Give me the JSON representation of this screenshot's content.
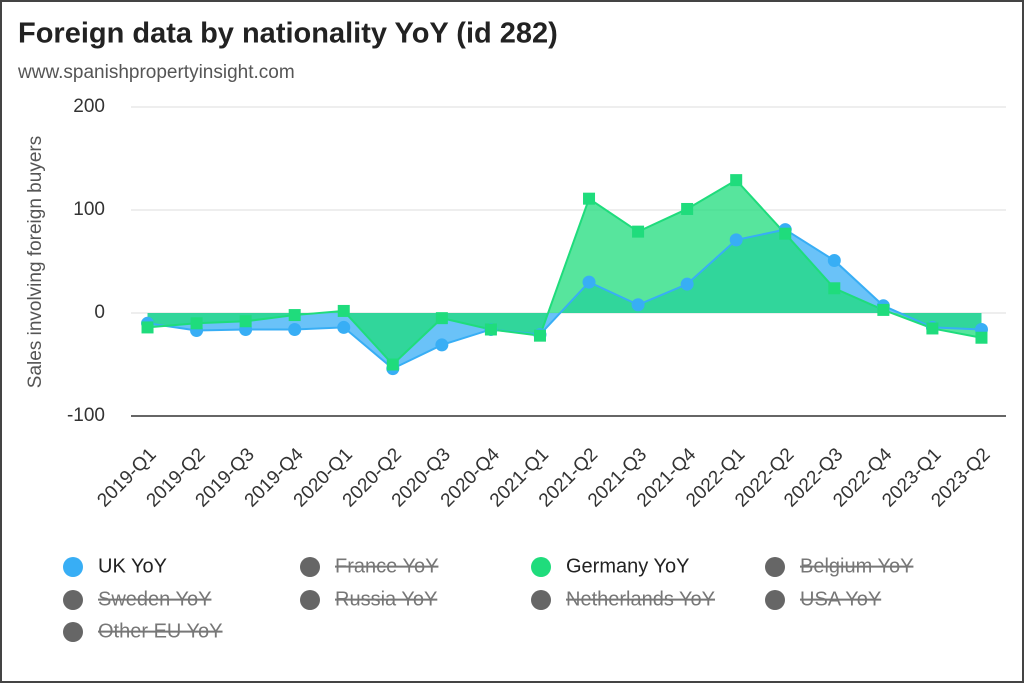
{
  "chart_data": {
    "type": "area",
    "title": "Foreign data by nationality YoY (id 282)",
    "subtitle": "www.spanishpropertyinsight.com",
    "y_label": "Sales involving foreign buyers",
    "categories": [
      "2019-Q1",
      "2019-Q2",
      "2019-Q3",
      "2019-Q4",
      "2020-Q1",
      "2020-Q2",
      "2020-Q3",
      "2020-Q4",
      "2021-Q1",
      "2021-Q2",
      "2021-Q3",
      "2021-Q4",
      "2022-Q1",
      "2022-Q2",
      "2022-Q3",
      "2022-Q4",
      "2023-Q1",
      "2023-Q2"
    ],
    "ylim": [
      -100,
      200
    ],
    "yticks": [
      -100,
      0,
      100,
      200
    ],
    "grid": true,
    "legend": "bottom",
    "series": [
      {
        "name": "UK YoY",
        "color": "#38aef5",
        "marker": "circle",
        "values": [
          -10,
          -17,
          -16,
          -16,
          -14,
          -54,
          -31,
          -16,
          -21,
          30,
          8,
          28,
          71,
          81,
          51,
          7,
          -14,
          -16
        ]
      },
      {
        "name": "France YoY",
        "color": "#666666",
        "hidden": true
      },
      {
        "name": "Germany YoY",
        "color": "#1fdc7c",
        "marker": "square",
        "values": [
          -14,
          -10,
          -8,
          -2,
          2,
          -50,
          -5,
          -16,
          -22,
          111,
          79,
          101,
          129,
          77,
          24,
          3,
          -15,
          -24
        ]
      },
      {
        "name": "Belgium YoY",
        "color": "#666666",
        "hidden": true
      },
      {
        "name": "Sweden YoY",
        "color": "#666666",
        "hidden": true
      },
      {
        "name": "Russia YoY",
        "color": "#666666",
        "hidden": true
      },
      {
        "name": "Netherlands YoY",
        "color": "#666666",
        "hidden": true
      },
      {
        "name": "USA YoY",
        "color": "#666666",
        "hidden": true
      },
      {
        "name": "Other EU YoY",
        "color": "#666666",
        "hidden": true
      }
    ]
  }
}
